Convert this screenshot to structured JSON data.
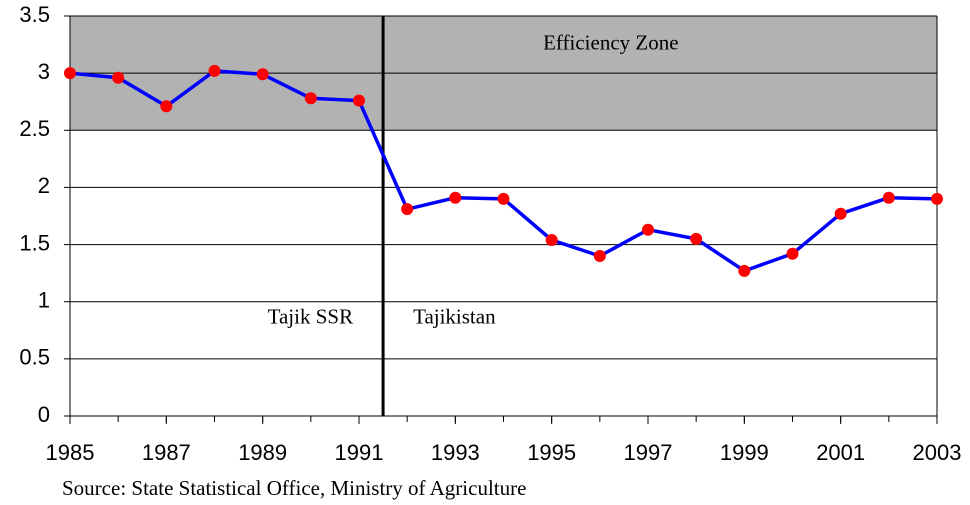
{
  "chart_data": {
    "type": "line",
    "x": [
      1985,
      1986,
      1987,
      1988,
      1989,
      1990,
      1991,
      1992,
      1993,
      1994,
      1995,
      1996,
      1997,
      1998,
      1999,
      2000,
      2001,
      2002,
      2003
    ],
    "series": [
      {
        "color": "#0000ff",
        "marker_color": "#ff0000",
        "values": [
          3.0,
          2.96,
          2.71,
          3.02,
          2.99,
          2.78,
          2.76,
          1.81,
          1.91,
          1.9,
          1.54,
          1.4,
          1.63,
          1.55,
          1.27,
          1.42,
          1.77,
          1.91,
          1.9
        ]
      }
    ],
    "xlim": [
      1985,
      2003
    ],
    "xticks": [
      1985,
      1987,
      1989,
      1991,
      1993,
      1995,
      1997,
      1999,
      2001,
      2003
    ],
    "ylim": [
      0,
      3.5
    ],
    "yticks": [
      0,
      0.5,
      1,
      1.5,
      2,
      2.5,
      3,
      3.5
    ],
    "grid": true,
    "zone": {
      "label": "Efficiency Zone",
      "range": [
        2.5,
        3.5
      ],
      "color": "#b2b2b2"
    },
    "divider": {
      "x": 1991.5,
      "left_label": "Tajik SSR",
      "right_label": "Tajikistan"
    },
    "source": "Source: State Statistical Office, Ministry of Agriculture"
  }
}
